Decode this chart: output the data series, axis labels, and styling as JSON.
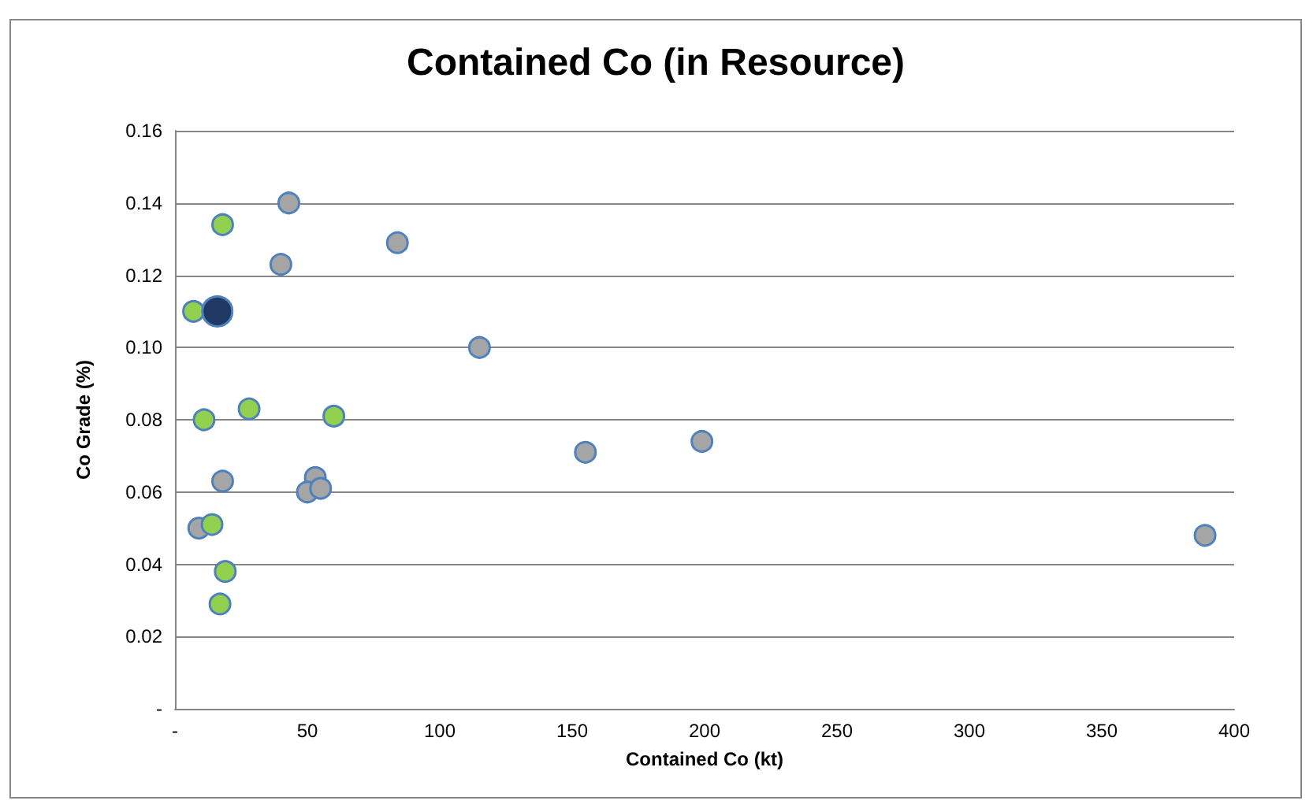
{
  "chart_data": {
    "type": "scatter",
    "title": "Contained Co (in Resource)",
    "xlabel": "Contained Co (kt)",
    "ylabel": "Co Grade (%)",
    "series": [
      {
        "color": "#a5a5a5",
        "x": [
          43,
          40,
          84,
          115,
          155,
          199,
          389,
          18,
          53,
          50,
          55,
          9
        ],
        "values": [
          0.14,
          0.123,
          0.129,
          0.1,
          0.071,
          0.074,
          0.048,
          0.063,
          0.064,
          0.06,
          0.061,
          0.05
        ]
      },
      {
        "color": "#92d050",
        "x": [
          18,
          7,
          11,
          28,
          60,
          14,
          19,
          17
        ],
        "values": [
          0.134,
          0.11,
          0.08,
          0.083,
          0.081,
          0.051,
          0.038,
          0.029
        ]
      },
      {
        "color": "#1f3864",
        "x": [
          16
        ],
        "values": [
          0.11
        ]
      }
    ],
    "xlim": [
      0,
      400
    ],
    "xticks": [
      {
        "value": 0,
        "label": "-"
      },
      50,
      100,
      150,
      200,
      250,
      300,
      350,
      400
    ],
    "ylim": [
      0,
      0.16
    ],
    "yticks": [
      {
        "value": 0,
        "label": "-"
      },
      0.02,
      0.04,
      0.06,
      0.08,
      {
        "value": 0.1,
        "label": "0.10"
      },
      0.12,
      0.14,
      0.16
    ],
    "grid": "y",
    "marker": "circle"
  }
}
